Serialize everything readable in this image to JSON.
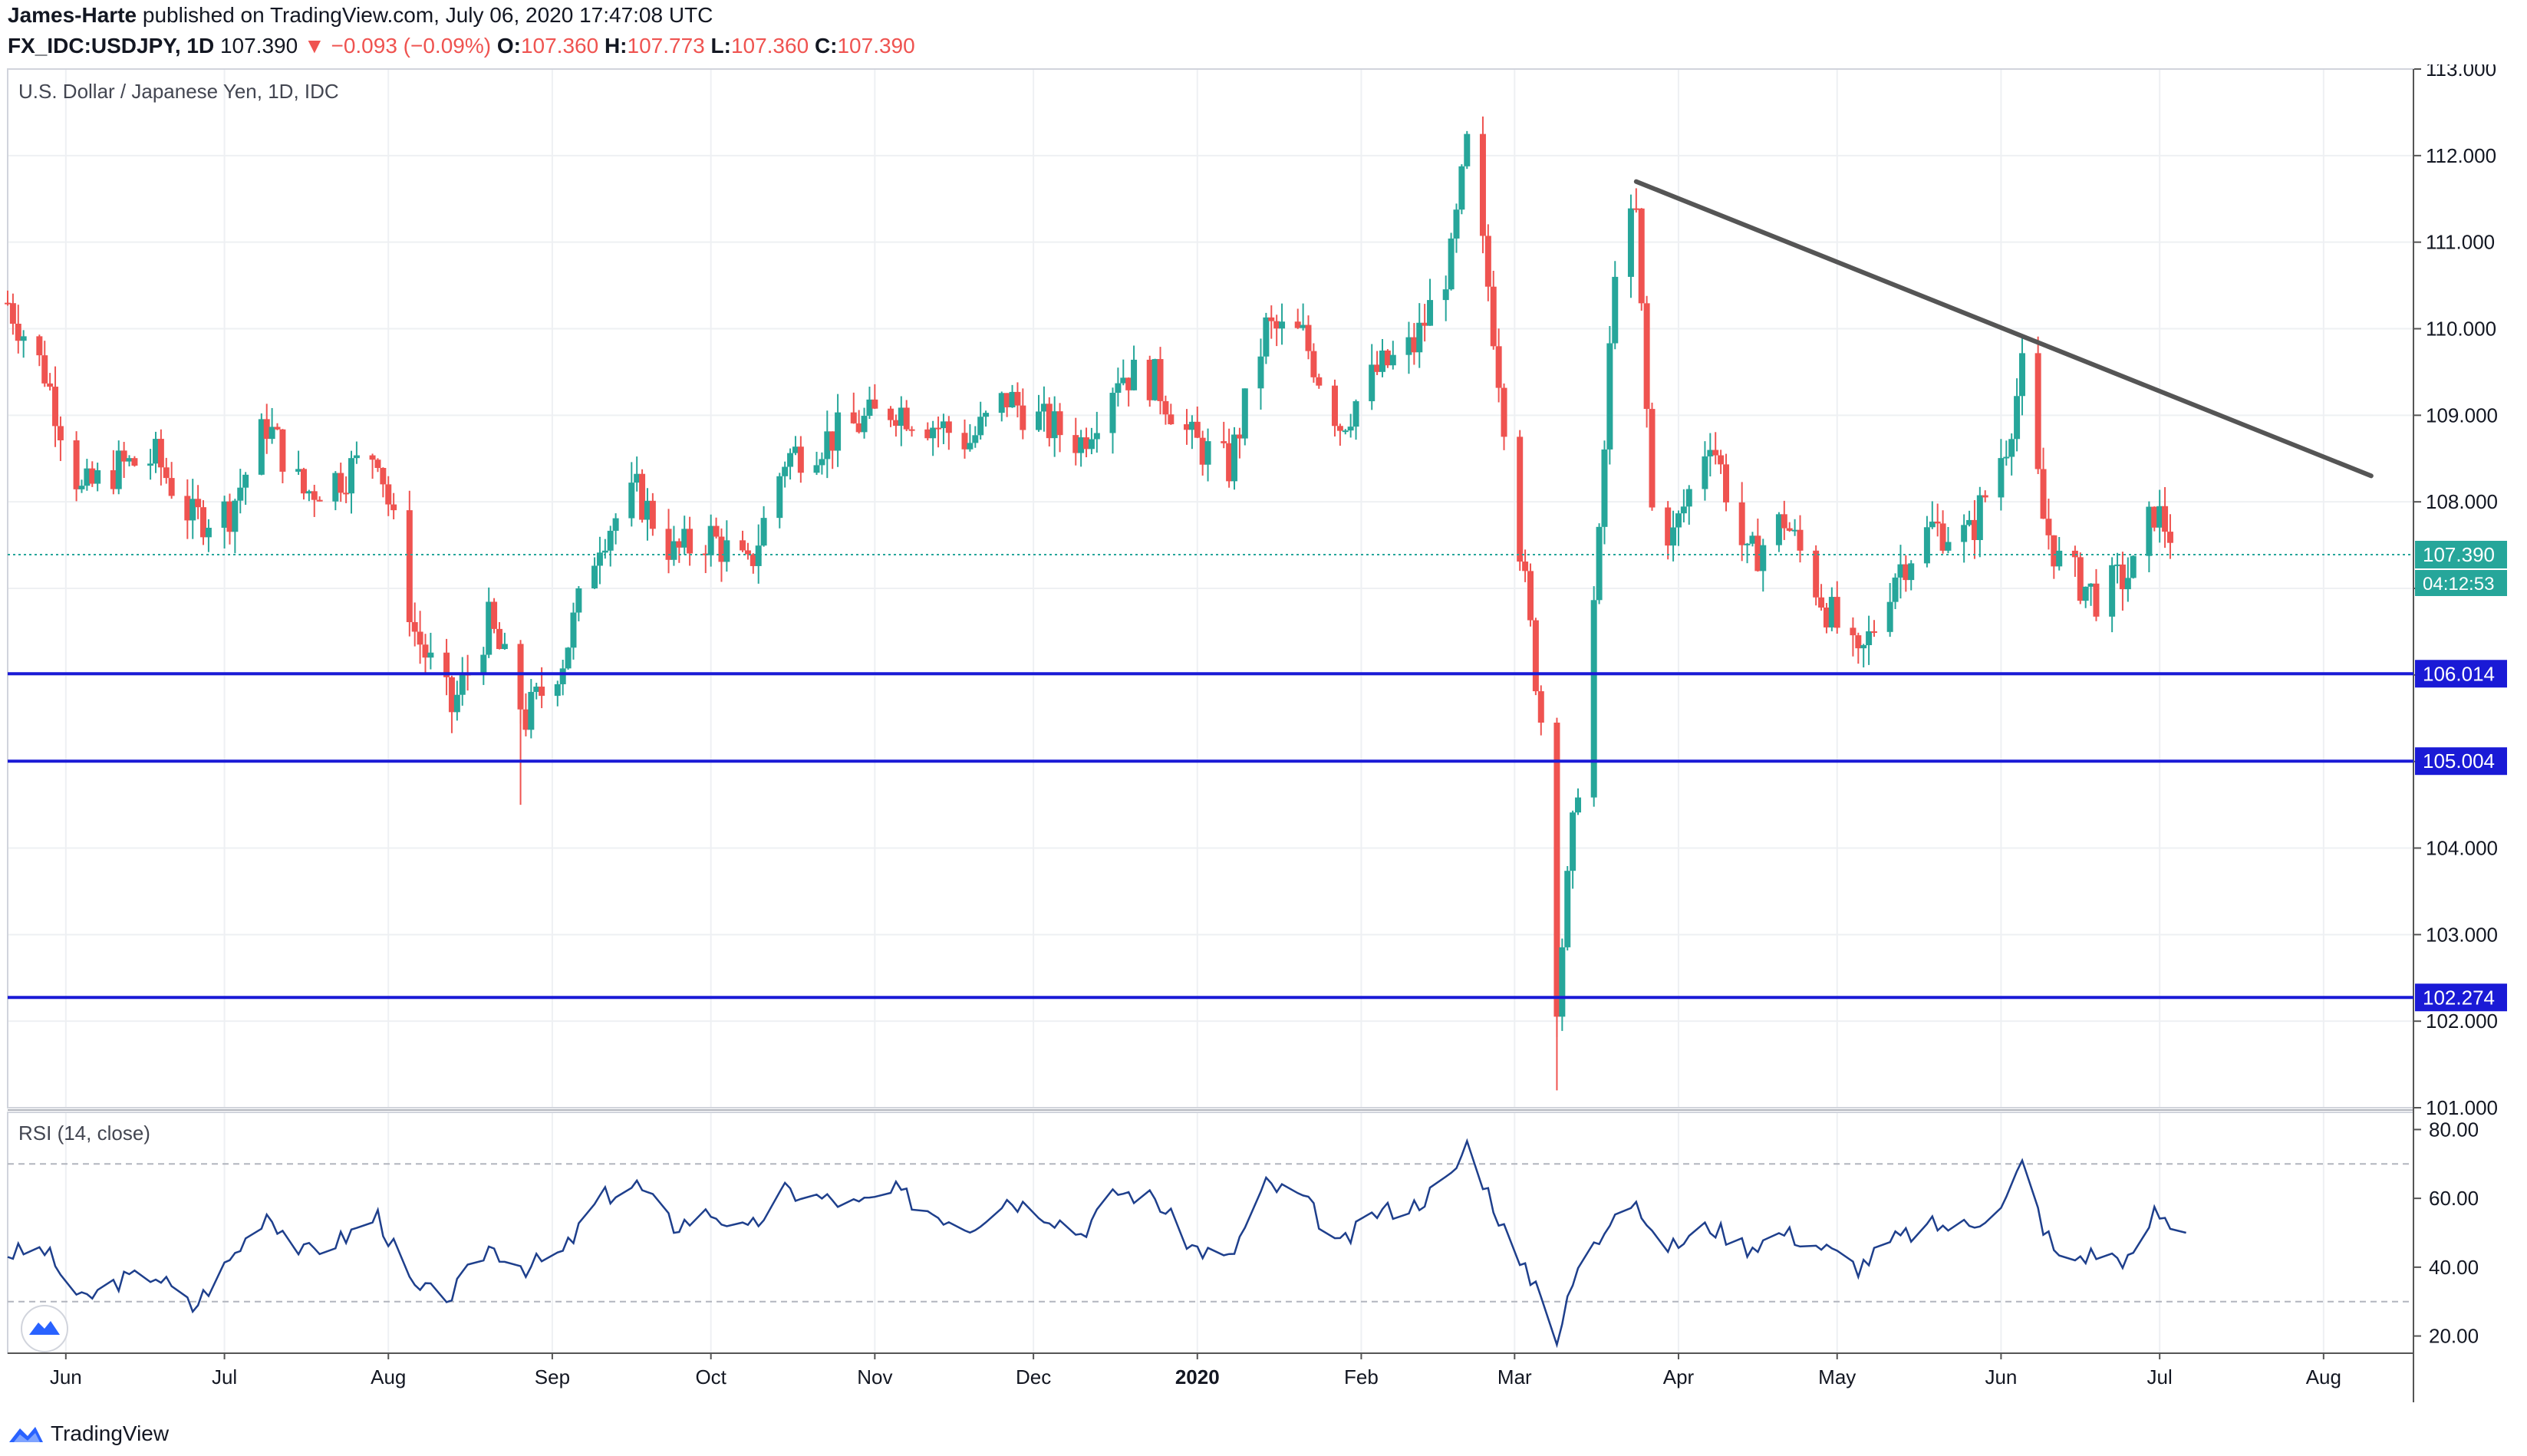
{
  "header": {
    "author": "James-Harte",
    "published_text": "published on TradingView.com, July 06, 2020 17:47:08 UTC",
    "symbol": "FX_IDC:USDJPY, 1D",
    "last": "107.390",
    "change_arrow": "▼",
    "change": "−0.093 (−0.09%)",
    "o_label": "O:",
    "o_value": "107.360",
    "h_label": "H:",
    "h_value": "107.773",
    "l_label": "L:",
    "l_value": "107.360",
    "c_label": "C:",
    "c_value": "107.390"
  },
  "footer": {
    "brand": "TradingView",
    "logo_icon": "tradingview-logo-icon"
  },
  "colors": {
    "up": "#26a69a",
    "down": "#ef5350",
    "level": "#1a1ad6",
    "trendline": "#555555",
    "rsi": "#1e3f8c",
    "grid": "#eef0f3",
    "price_tag": "#26a69a"
  },
  "chart_data": [
    {
      "type": "candlestick",
      "title": "U.S. Dollar / Japanese Yen, 1D, IDC",
      "y_axis_ticks": [
        "113.000",
        "112.000",
        "111.000",
        "110.000",
        "109.000",
        "108.000",
        "107.000",
        "106.000",
        "105.000",
        "104.000",
        "103.000",
        "102.000",
        "101.000"
      ],
      "ylim": [
        101.0,
        113.0
      ],
      "x_axis_labels": [
        "Jun",
        "Jul",
        "Aug",
        "Sep",
        "Oct",
        "Nov",
        "Dec",
        "2020",
        "Feb",
        "Mar",
        "Apr",
        "May",
        "Jun",
        "Jul",
        "Aug"
      ],
      "x_range": [
        "2019-05-21",
        "2020-08-18"
      ],
      "closes": [
        [
          "2019-05-21",
          110.3
        ],
        [
          "2019-05-28",
          109.5
        ],
        [
          "2019-06-04",
          108.1
        ],
        [
          "2019-06-11",
          108.4
        ],
        [
          "2019-06-18",
          108.5
        ],
        [
          "2019-06-25",
          107.8
        ],
        [
          "2019-07-02",
          107.9
        ],
        [
          "2019-07-09",
          108.9
        ],
        [
          "2019-07-16",
          108.1
        ],
        [
          "2019-07-23",
          108.3
        ],
        [
          "2019-07-30",
          108.6
        ],
        [
          "2019-08-06",
          106.5
        ],
        [
          "2019-08-13",
          105.6
        ],
        [
          "2019-08-20",
          106.6
        ],
        [
          "2019-08-27",
          105.5
        ],
        [
          "2019-09-03",
          106.2
        ],
        [
          "2019-09-10",
          107.6
        ],
        [
          "2019-09-17",
          108.1
        ],
        [
          "2019-09-24",
          107.4
        ],
        [
          "2019-10-01",
          107.6
        ],
        [
          "2019-10-08",
          107.2
        ],
        [
          "2019-10-15",
          108.5
        ],
        [
          "2019-10-22",
          108.7
        ],
        [
          "2019-10-29",
          108.9
        ],
        [
          "2019-11-05",
          109.1
        ],
        [
          "2019-11-12",
          108.9
        ],
        [
          "2019-11-19",
          108.7
        ],
        [
          "2019-11-26",
          109.2
        ],
        [
          "2019-12-03",
          108.9
        ],
        [
          "2019-12-10",
          108.7
        ],
        [
          "2019-12-17",
          109.5
        ],
        [
          "2019-12-24",
          109.4
        ],
        [
          "2019-12-31",
          108.7
        ],
        [
          "2020-01-07",
          108.4
        ],
        [
          "2020-01-14",
          110.0
        ],
        [
          "2020-01-21",
          109.9
        ],
        [
          "2020-01-28",
          108.9
        ],
        [
          "2020-02-04",
          109.5
        ],
        [
          "2020-02-11",
          109.8
        ],
        [
          "2020-02-18",
          110.8
        ],
        [
          "2020-02-21",
          112.1
        ],
        [
          "2020-02-25",
          110.5
        ],
        [
          "2020-03-02",
          107.5
        ],
        [
          "2020-03-06",
          105.5
        ],
        [
          "2020-03-09",
          102.3
        ],
        [
          "2020-03-13",
          104.8
        ],
        [
          "2020-03-17",
          107.5
        ],
        [
          "2020-03-20",
          110.8
        ],
        [
          "2020-03-24",
          111.3
        ],
        [
          "2020-03-27",
          107.9
        ],
        [
          "2020-03-31",
          107.6
        ],
        [
          "2020-04-07",
          108.8
        ],
        [
          "2020-04-14",
          107.3
        ],
        [
          "2020-04-21",
          107.8
        ],
        [
          "2020-04-28",
          106.9
        ],
        [
          "2020-05-05",
          106.1
        ],
        [
          "2020-05-12",
          107.2
        ],
        [
          "2020-05-19",
          107.7
        ],
        [
          "2020-05-26",
          107.6
        ],
        [
          "2020-06-02",
          108.7
        ],
        [
          "2020-06-05",
          109.5
        ],
        [
          "2020-06-09",
          107.8
        ],
        [
          "2020-06-12",
          107.3
        ],
        [
          "2020-06-19",
          106.9
        ],
        [
          "2020-06-26",
          107.2
        ],
        [
          "2020-06-30",
          107.9
        ],
        [
          "2020-07-06",
          107.39
        ]
      ],
      "lows_marked": [
        [
          "2019-08-26",
          104.5
        ],
        [
          "2020-03-09",
          101.2
        ]
      ],
      "horizontal_levels": [
        "106.014",
        "105.004",
        "102.274"
      ],
      "trendline": {
        "from": [
          "2020-03-24",
          111.7
        ],
        "to": [
          "2020-08-10",
          108.3
        ]
      },
      "last_price_label": "107.390",
      "countdown_label": "04:12:53",
      "last_price": 107.39
    },
    {
      "type": "line",
      "title": "RSI (14, close)",
      "y_axis_ticks": [
        "80.00",
        "60.00",
        "40.00",
        "20.00"
      ],
      "ylim": [
        15,
        85
      ],
      "bands": [
        70,
        30
      ],
      "series": [
        {
          "name": "RSI",
          "points": [
            [
              "2019-05-21",
              44
            ],
            [
              "2019-05-28",
              45
            ],
            [
              "2019-06-04",
              30
            ],
            [
              "2019-06-11",
              36
            ],
            [
              "2019-06-18",
              38
            ],
            [
              "2019-06-25",
              28
            ],
            [
              "2019-07-02",
              42
            ],
            [
              "2019-07-09",
              56
            ],
            [
              "2019-07-16",
              44
            ],
            [
              "2019-07-23",
              48
            ],
            [
              "2019-07-30",
              55
            ],
            [
              "2019-08-06",
              33
            ],
            [
              "2019-08-13",
              32
            ],
            [
              "2019-08-20",
              46
            ],
            [
              "2019-08-27",
              40
            ],
            [
              "2019-09-03",
              44
            ],
            [
              "2019-09-10",
              60
            ],
            [
              "2019-09-17",
              64
            ],
            [
              "2019-09-24",
              52
            ],
            [
              "2019-10-01",
              56
            ],
            [
              "2019-10-08",
              50
            ],
            [
              "2019-10-15",
              62
            ],
            [
              "2019-10-22",
              60
            ],
            [
              "2019-10-29",
              58
            ],
            [
              "2019-11-05",
              62
            ],
            [
              "2019-11-12",
              56
            ],
            [
              "2019-11-19",
              52
            ],
            [
              "2019-11-26",
              60
            ],
            [
              "2019-12-03",
              56
            ],
            [
              "2019-12-10",
              50
            ],
            [
              "2019-12-17",
              62
            ],
            [
              "2019-12-24",
              60
            ],
            [
              "2019-12-31",
              46
            ],
            [
              "2020-01-07",
              42
            ],
            [
              "2020-01-14",
              64
            ],
            [
              "2020-01-21",
              60
            ],
            [
              "2020-01-28",
              46
            ],
            [
              "2020-02-04",
              56
            ],
            [
              "2020-02-11",
              58
            ],
            [
              "2020-02-18",
              66
            ],
            [
              "2020-02-21",
              76
            ],
            [
              "2020-02-25",
              62
            ],
            [
              "2020-03-02",
              40
            ],
            [
              "2020-03-06",
              34
            ],
            [
              "2020-03-09",
              19
            ],
            [
              "2020-03-13",
              40
            ],
            [
              "2020-03-17",
              48
            ],
            [
              "2020-03-20",
              58
            ],
            [
              "2020-03-24",
              60
            ],
            [
              "2020-03-27",
              48
            ],
            [
              "2020-03-31",
              46
            ],
            [
              "2020-04-07",
              52
            ],
            [
              "2020-04-14",
              46
            ],
            [
              "2020-04-21",
              50
            ],
            [
              "2020-04-28",
              46
            ],
            [
              "2020-05-05",
              40
            ],
            [
              "2020-05-12",
              48
            ],
            [
              "2020-05-19",
              52
            ],
            [
              "2020-05-26",
              52
            ],
            [
              "2020-06-02",
              60
            ],
            [
              "2020-06-05",
              70
            ],
            [
              "2020-06-09",
              52
            ],
            [
              "2020-06-12",
              42
            ],
            [
              "2020-06-19",
              44
            ],
            [
              "2020-06-26",
              42
            ],
            [
              "2020-06-30",
              56
            ],
            [
              "2020-07-06",
              50
            ]
          ]
        }
      ]
    }
  ]
}
